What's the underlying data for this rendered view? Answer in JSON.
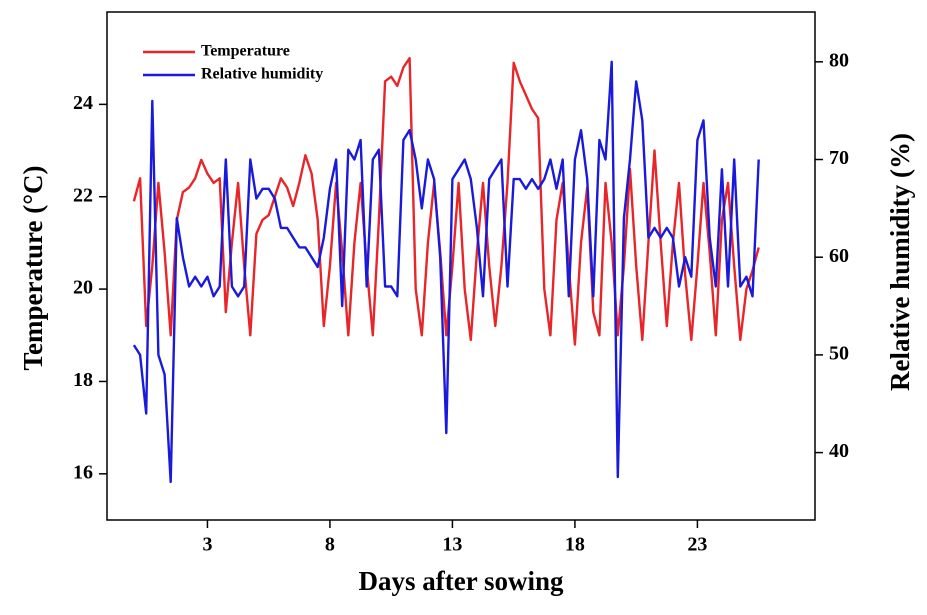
{
  "chart_data": {
    "type": "line",
    "xlabel": "Days after sowing",
    "ylabel": "Temperature (°C)",
    "y2label": "Relative humidity (%)",
    "x": [
      0,
      0.25,
      0.5,
      0.75,
      1,
      1.25,
      1.5,
      1.75,
      2,
      2.25,
      2.5,
      2.75,
      3,
      3.25,
      3.5,
      3.75,
      4,
      4.25,
      4.5,
      4.75,
      5,
      5.25,
      5.5,
      5.75,
      6,
      6.25,
      6.5,
      6.75,
      7,
      7.25,
      7.5,
      7.75,
      8,
      8.25,
      8.5,
      8.75,
      9,
      9.25,
      9.5,
      9.75,
      10,
      10.25,
      10.5,
      10.75,
      11,
      11.25,
      11.5,
      11.75,
      12,
      12.25,
      12.5,
      12.75,
      13,
      13.25,
      13.5,
      13.75,
      14,
      14.25,
      14.5,
      14.75,
      15,
      15.25,
      15.5,
      15.75,
      16,
      16.25,
      16.5,
      16.75,
      17,
      17.25,
      17.5,
      17.75,
      18,
      18.25,
      18.5,
      18.75,
      19,
      19.25,
      19.5,
      19.75,
      20,
      20.25,
      20.5,
      20.75,
      21,
      21.25,
      21.5,
      21.75,
      22,
      22.25,
      22.5,
      22.75,
      23,
      23.25,
      23.5,
      23.75,
      24,
      24.25,
      24.5,
      24.75,
      25,
      25.25,
      25.5
    ],
    "series": [
      {
        "name": "Temperature",
        "color": "#e8262a",
        "axis": "y",
        "values": [
          21.9,
          22.4,
          19.2,
          20.5,
          22.3,
          20.8,
          19.0,
          21.5,
          22.1,
          22.2,
          22.4,
          22.8,
          22.5,
          22.3,
          22.4,
          19.5,
          21.0,
          22.3,
          20.5,
          19.0,
          21.2,
          21.5,
          21.6,
          22.0,
          22.4,
          22.2,
          21.8,
          22.3,
          22.9,
          22.5,
          21.5,
          19.2,
          20.5,
          22.3,
          20.8,
          19.0,
          21.0,
          22.3,
          20.5,
          19.0,
          21.5,
          24.5,
          24.6,
          24.4,
          24.8,
          25.0,
          20.0,
          19.0,
          21.0,
          22.3,
          20.8,
          19.0,
          20.5,
          22.3,
          20.0,
          18.9,
          20.8,
          22.3,
          20.5,
          19.2,
          20.5,
          22.3,
          24.9,
          24.5,
          24.2,
          23.9,
          23.7,
          20.0,
          19.0,
          21.5,
          22.3,
          20.5,
          18.8,
          21.0,
          22.2,
          19.5,
          19.0,
          22.3,
          21.0,
          19.0,
          20.5,
          22.6,
          20.5,
          18.9,
          21.0,
          23.0,
          21.0,
          19.2,
          21.0,
          22.3,
          20.3,
          18.9,
          20.5,
          22.3,
          20.8,
          19.0,
          21.5,
          22.3,
          20.5,
          18.9,
          20.0,
          20.4,
          20.9
        ]
      },
      {
        "name": "Relative humidity",
        "color": "#1a1adb",
        "axis": "y2",
        "values": [
          51,
          50,
          44,
          76,
          50,
          48,
          37,
          64,
          60,
          57,
          58,
          57,
          58,
          56,
          57,
          70,
          57,
          56,
          57,
          70,
          66,
          67,
          67,
          66,
          63,
          63,
          62,
          61,
          61,
          60,
          59,
          62,
          67,
          70,
          55,
          71,
          70,
          72,
          57,
          70,
          71,
          57,
          57,
          56,
          72,
          73,
          70,
          65,
          70,
          68,
          60,
          42,
          68,
          69,
          70,
          68,
          63,
          56,
          68,
          69,
          70,
          57,
          68,
          68,
          67,
          68,
          67,
          68,
          70,
          67,
          70,
          56,
          70,
          73,
          68,
          56,
          72,
          70,
          80,
          37.5,
          64,
          70,
          78,
          74,
          62,
          63,
          62,
          63,
          62,
          57,
          60,
          58,
          72,
          74,
          62,
          57,
          69,
          57,
          70,
          57,
          58,
          56,
          70
        ]
      }
    ],
    "xlim": [
      -1.1,
      27.8
    ],
    "xticks": [
      3,
      8,
      13,
      18,
      23
    ],
    "ylim": [
      15,
      26
    ],
    "yticks": [
      16,
      18,
      20,
      22,
      24
    ],
    "y2lim": [
      33.1,
      85.1
    ],
    "y2ticks": [
      40,
      50,
      60,
      70,
      80
    ],
    "legend": "upper left"
  }
}
